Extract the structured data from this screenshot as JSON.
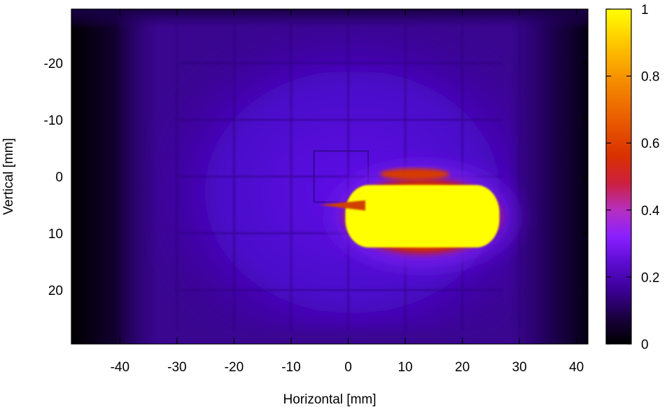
{
  "chart_data": {
    "type": "heatmap",
    "title": "",
    "xlabel": "Horizontal [mm]",
    "ylabel": "Vertical [mm]",
    "xlim": [
      -48.5,
      42
    ],
    "ylim": [
      -29.5,
      29.5
    ],
    "y_inverted": true,
    "xticks": [
      -40,
      -30,
      -20,
      -10,
      0,
      10,
      20,
      30,
      40
    ],
    "yticks": [
      -20,
      -10,
      0,
      10,
      20
    ],
    "colorbar": {
      "min": 0,
      "max": 1,
      "ticks": [
        0,
        0.2,
        0.4,
        0.6,
        0.8,
        1
      ],
      "colormap": [
        "#000000",
        "#1a0040",
        "#3b0095",
        "#5a0ccf",
        "#8a1fff",
        "#b52fc0",
        "#cc2040",
        "#e04000",
        "#f07000",
        "#ffa000",
        "#ffd000",
        "#ffff00"
      ]
    },
    "hotspot": {
      "x_center": 13,
      "y_center": 7,
      "x_half_width": 13.5,
      "y_half_height": 5.5,
      "value": 1
    },
    "background_level": 0.15,
    "grid": true
  }
}
